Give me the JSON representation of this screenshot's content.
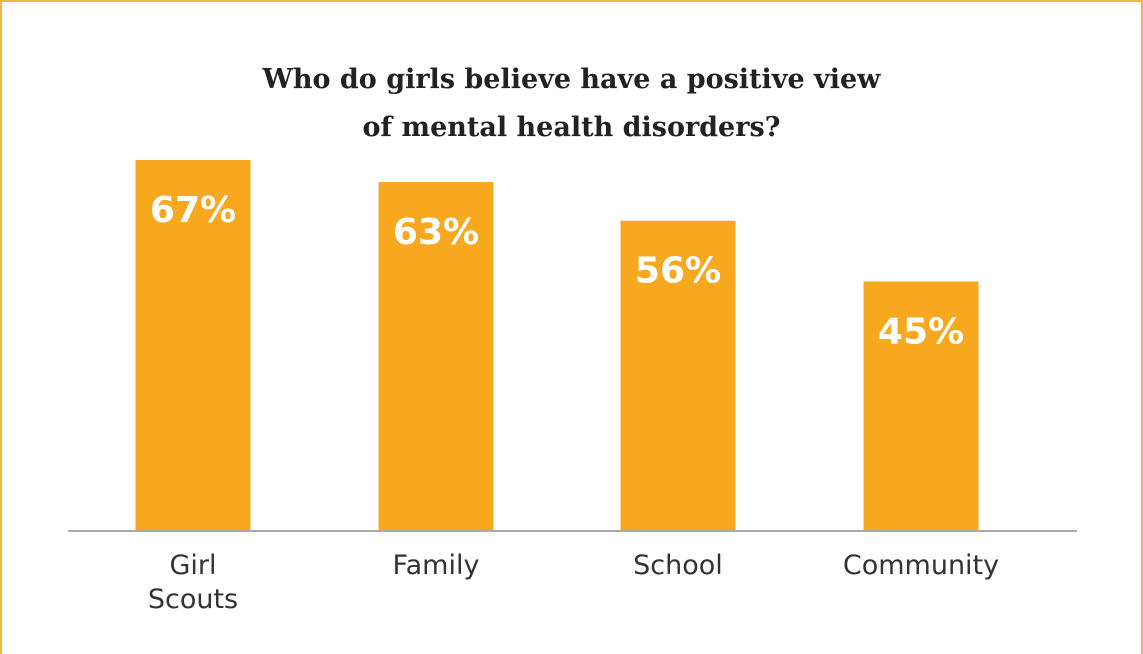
{
  "chart_data": {
    "type": "bar",
    "title_lines": [
      "Who do girls believe have a positive view",
      "of mental health disorders?"
    ],
    "categories": [
      [
        "Girl",
        "Scouts"
      ],
      [
        "Family"
      ],
      [
        "School"
      ],
      [
        "Community"
      ]
    ],
    "values": [
      67,
      63,
      56,
      45
    ],
    "value_labels": [
      "67%",
      "63%",
      "56%",
      "45%"
    ],
    "ylim": [
      0,
      100
    ],
    "grid": false,
    "legend": "none",
    "bar_color": "#f7a81f",
    "axis_color": "#aaaaaa"
  }
}
